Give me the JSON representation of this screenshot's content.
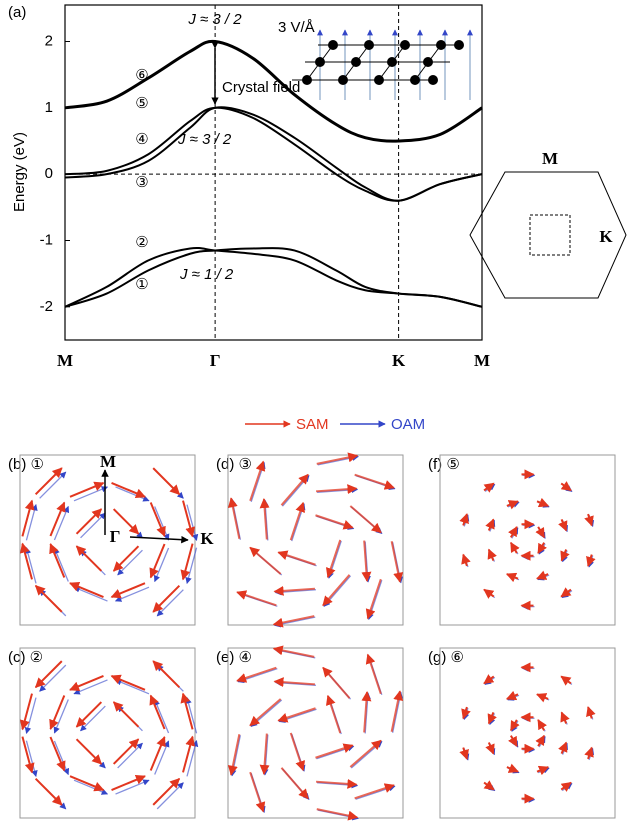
{
  "chart_data": {
    "type": "line",
    "y_label": "Energy (eV)",
    "x": [
      0,
      0.1,
      0.2,
      0.3,
      0.36,
      0.45,
      0.55,
      0.65,
      0.72,
      0.8,
      0.9,
      1
    ],
    "xlim": [
      0,
      1
    ],
    "xticks": [
      {
        "value": 0,
        "label": "M"
      },
      {
        "value": 0.36,
        "label": "Γ"
      },
      {
        "value": 0.8,
        "label": "K"
      },
      {
        "value": 1,
        "label": "M"
      }
    ],
    "ylim": [
      -2.5,
      2.55
    ],
    "yticks": [
      -2,
      -1,
      0,
      1,
      2
    ],
    "series": [
      {
        "color": "#000000",
        "values": [
          1.0,
          1.1,
          1.45,
          1.85,
          2.0,
          1.75,
          1.2,
          0.75,
          0.55,
          0.5,
          0.6,
          1.0
        ]
      },
      {
        "color": "#000000",
        "values": [
          -0.05,
          0.0,
          0.2,
          0.7,
          1.0,
          0.9,
          0.55,
          0.1,
          -0.2,
          -0.4,
          -0.15,
          0.0
        ]
      },
      {
        "color": "#000000",
        "values": [
          0.0,
          0.05,
          0.3,
          0.8,
          1.0,
          0.85,
          0.45,
          0.0,
          -0.25,
          -0.4,
          -0.15,
          0.0
        ]
      },
      {
        "color": "#000000",
        "values": [
          -2.0,
          -1.7,
          -1.3,
          -1.12,
          -1.15,
          -1.2,
          -1.3,
          -1.6,
          -1.75,
          -1.8,
          -1.85,
          -2.0
        ]
      },
      {
        "color": "#000000",
        "values": [
          -2.0,
          -1.8,
          -1.45,
          -1.2,
          -1.15,
          -1.12,
          -1.15,
          -1.45,
          -1.7,
          -1.8,
          -1.85,
          -2.0
        ]
      }
    ],
    "annotations": [
      "(a)",
      "J ≈ 3 / 2",
      "3 V/Å",
      "Crystal field",
      "J ≈ 3 / 2",
      "J ≈ 1 / 2",
      "⑥",
      "⑤",
      "④",
      "③",
      "②",
      "①"
    ]
  },
  "brillouin_zone": {
    "labels": [
      "M",
      "K"
    ]
  },
  "legend": {
    "items": [
      {
        "name": "SAM",
        "color": "#e2361f"
      },
      {
        "name": "OAM",
        "color": "#3346c8"
      }
    ]
  },
  "panels": [
    {
      "label": "(b) ①"
    },
    {
      "label": "(c) ②"
    },
    {
      "label": "(d) ③"
    },
    {
      "label": "(e) ④"
    },
    {
      "label": "(f) ⑤"
    },
    {
      "label": "(g) ⑥"
    }
  ],
  "panel_b_axes": [
    "M",
    "Γ",
    "K"
  ]
}
